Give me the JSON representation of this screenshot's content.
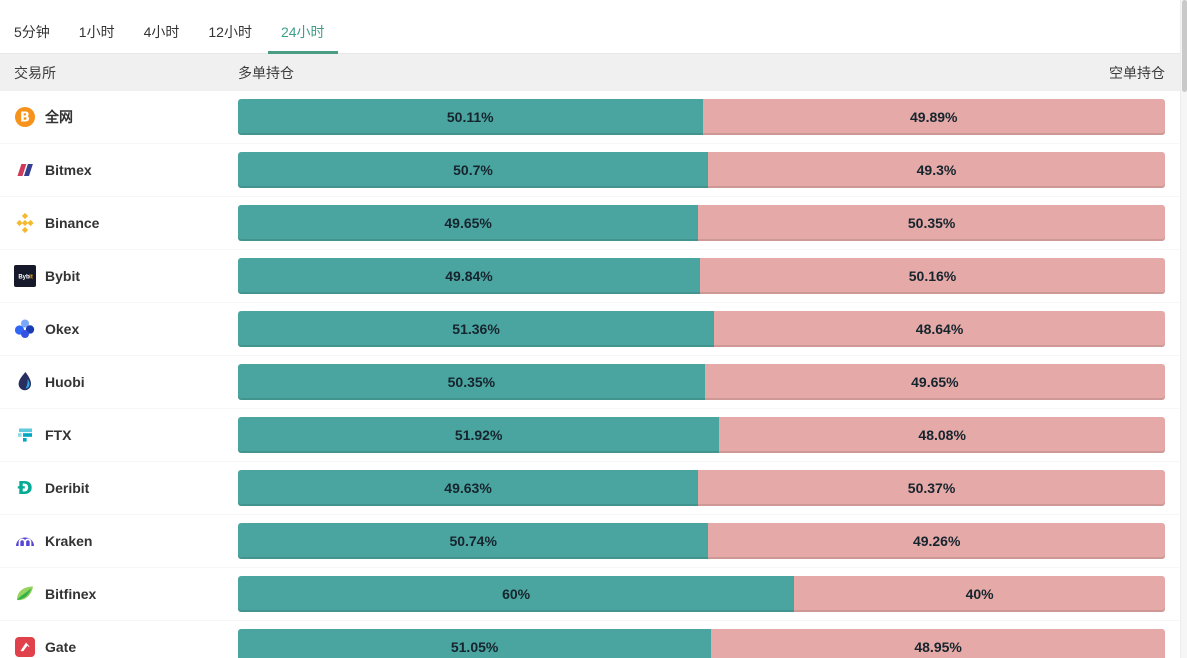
{
  "colors": {
    "long_bar": "#4aa5a0",
    "short_bar": "#e5aaa7",
    "tab_active": "#3f9e8a",
    "header_bg": "#f0f0f0"
  },
  "tabs": {
    "items": [
      {
        "label": "5分钟",
        "active": false
      },
      {
        "label": "1小时",
        "active": false
      },
      {
        "label": "4小时",
        "active": false
      },
      {
        "label": "12小时",
        "active": false
      },
      {
        "label": "24小时",
        "active": true
      }
    ]
  },
  "table": {
    "headers": {
      "exchange": "交易所",
      "long": "多单持仓",
      "short": "空单持仓"
    },
    "rows": [
      {
        "name": "全网",
        "icon": "bitcoin",
        "long": 50.11,
        "short": 49.89,
        "long_label": "50.11%",
        "short_label": "49.89%"
      },
      {
        "name": "Bitmex",
        "icon": "bitmex",
        "long": 50.7,
        "short": 49.3,
        "long_label": "50.7%",
        "short_label": "49.3%"
      },
      {
        "name": "Binance",
        "icon": "binance",
        "long": 49.65,
        "short": 50.35,
        "long_label": "49.65%",
        "short_label": "50.35%"
      },
      {
        "name": "Bybit",
        "icon": "bybit",
        "long": 49.84,
        "short": 50.16,
        "long_label": "49.84%",
        "short_label": "50.16%"
      },
      {
        "name": "Okex",
        "icon": "okex",
        "long": 51.36,
        "short": 48.64,
        "long_label": "51.36%",
        "short_label": "48.64%"
      },
      {
        "name": "Huobi",
        "icon": "huobi",
        "long": 50.35,
        "short": 49.65,
        "long_label": "50.35%",
        "short_label": "49.65%"
      },
      {
        "name": "FTX",
        "icon": "ftx",
        "long": 51.92,
        "short": 48.08,
        "long_label": "51.92%",
        "short_label": "48.08%"
      },
      {
        "name": "Deribit",
        "icon": "deribit",
        "long": 49.63,
        "short": 50.37,
        "long_label": "49.63%",
        "short_label": "50.37%"
      },
      {
        "name": "Kraken",
        "icon": "kraken",
        "long": 50.74,
        "short": 49.26,
        "long_label": "50.74%",
        "short_label": "49.26%"
      },
      {
        "name": "Bitfinex",
        "icon": "bitfinex",
        "long": 60,
        "short": 40,
        "long_label": "60%",
        "short_label": "40%"
      },
      {
        "name": "Gate",
        "icon": "gate",
        "long": 51.05,
        "short": 48.95,
        "long_label": "51.05%",
        "short_label": "48.95%"
      }
    ]
  }
}
